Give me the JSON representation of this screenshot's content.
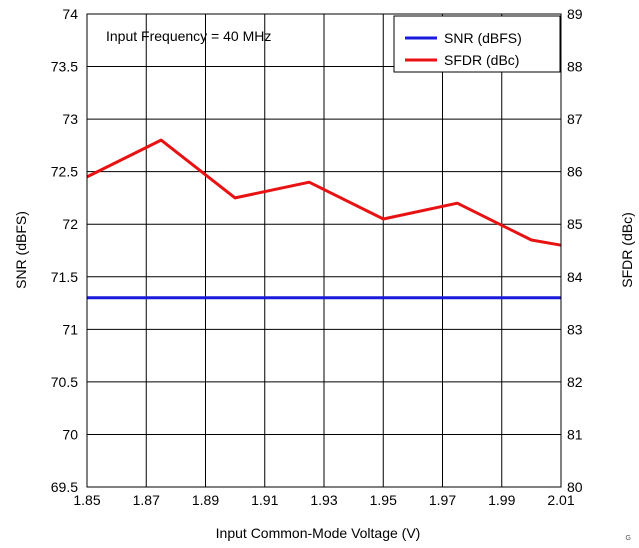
{
  "chart_data": {
    "type": "line",
    "annotation": "Input Frequency = 40 MHz",
    "xlabel": "Input Common-Mode Voltage (V)",
    "ylabel_left": "SNR (dBFS)",
    "ylabel_right": "SFDR (dBc)",
    "xlim": [
      1.85,
      2.01
    ],
    "ylim_left": [
      69.5,
      74
    ],
    "ylim_right": [
      80,
      89
    ],
    "x_ticks": [
      "1.85",
      "1.87",
      "1.89",
      "1.91",
      "1.93",
      "1.95",
      "1.97",
      "1.99",
      "2.01"
    ],
    "y_left_ticks": [
      "74",
      "73.5",
      "73",
      "72.5",
      "72",
      "71.5",
      "71",
      "70.5",
      "70",
      "69.5"
    ],
    "y_right_ticks": [
      "89",
      "88",
      "87",
      "86",
      "85",
      "84",
      "83",
      "82",
      "81",
      "80"
    ],
    "grid": true,
    "legend_position": "top-right",
    "corner_tag": "G",
    "series": [
      {
        "name": "SNR (dBFS)",
        "axis": "left",
        "color": "#1a1adc",
        "x": [
          1.85,
          1.875,
          1.9,
          1.925,
          1.95,
          1.975,
          2.0,
          2.01
        ],
        "y": [
          71.3,
          71.3,
          71.3,
          71.3,
          71.3,
          71.3,
          71.3,
          71.3
        ]
      },
      {
        "name": "SFDR (dBc)",
        "axis": "right",
        "color": "#e81212",
        "x": [
          1.85,
          1.875,
          1.9,
          1.925,
          1.95,
          1.975,
          2.0,
          2.01
        ],
        "y": [
          85.9,
          86.6,
          85.5,
          85.8,
          85.1,
          85.4,
          84.7,
          84.6
        ]
      }
    ]
  }
}
